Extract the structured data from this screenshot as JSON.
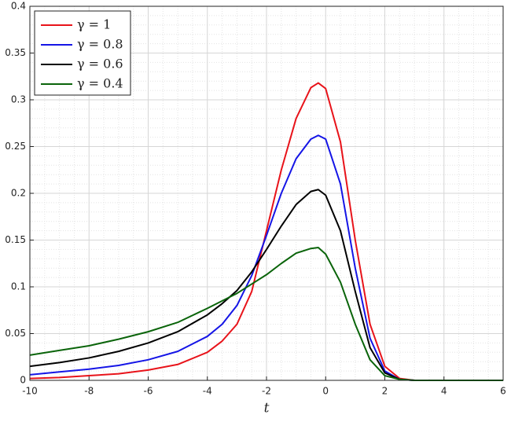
{
  "chart_data": {
    "type": "line",
    "x_label": "t",
    "x": [
      -10,
      -9,
      -8,
      -7,
      -6,
      -5,
      -4,
      -3.5,
      -3,
      -2.5,
      -2,
      -1.5,
      -1,
      -0.5,
      -0.25,
      0,
      0.5,
      1,
      1.5,
      2,
      2.5,
      3,
      4,
      5,
      6
    ],
    "series": [
      {
        "name": "γ = 1",
        "color": "#e8131a",
        "values": [
          0.002,
          0.003,
          0.005,
          0.007,
          0.011,
          0.017,
          0.03,
          0.042,
          0.06,
          0.095,
          0.16,
          0.225,
          0.28,
          0.313,
          0.318,
          0.312,
          0.255,
          0.15,
          0.06,
          0.015,
          0.002,
          0,
          0,
          0,
          0
        ]
      },
      {
        "name": "γ = 0.8",
        "color": "#1515e6",
        "values": [
          0.006,
          0.009,
          0.012,
          0.016,
          0.022,
          0.031,
          0.047,
          0.06,
          0.08,
          0.112,
          0.155,
          0.2,
          0.237,
          0.258,
          0.262,
          0.258,
          0.21,
          0.12,
          0.045,
          0.01,
          0.001,
          0,
          0,
          0,
          0
        ]
      },
      {
        "name": "γ = 0.6",
        "color": "#000000",
        "values": [
          0.015,
          0.019,
          0.024,
          0.031,
          0.04,
          0.052,
          0.07,
          0.082,
          0.096,
          0.116,
          0.14,
          0.165,
          0.188,
          0.202,
          0.204,
          0.198,
          0.16,
          0.095,
          0.035,
          0.008,
          0.001,
          0,
          0,
          0,
          0
        ]
      },
      {
        "name": "γ = 0.4",
        "color": "#0a640a",
        "values": [
          0.027,
          0.032,
          0.037,
          0.044,
          0.052,
          0.062,
          0.077,
          0.085,
          0.093,
          0.103,
          0.113,
          0.125,
          0.136,
          0.141,
          0.142,
          0.135,
          0.105,
          0.06,
          0.022,
          0.005,
          0.001,
          0,
          0,
          0,
          0
        ]
      }
    ],
    "xlim": [
      -10,
      6
    ],
    "xticks": [
      -10,
      -8,
      -6,
      -4,
      -2,
      0,
      2,
      4,
      6
    ],
    "ylim": [
      0,
      0.4
    ],
    "yticks": [
      0,
      0.05,
      0.1,
      0.15,
      0.2,
      0.25,
      0.3,
      0.35,
      0.4
    ],
    "grid": true,
    "minor_grid": true,
    "legend_position": "upper left"
  }
}
